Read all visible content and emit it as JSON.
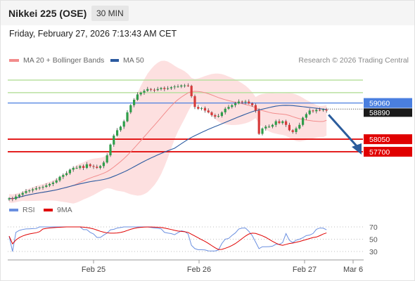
{
  "header": {
    "title": "Nikkei 225 (OSE)",
    "timeframe": "30 MIN"
  },
  "datetime": "Friday, February 27, 2026 7:13:43 AM CET",
  "legend": {
    "ma20_bb": "MA 20 + Bollinger Bands",
    "ma50": "MA 50"
  },
  "credit": "Research © 2026 Trading Central",
  "rsi_legend": {
    "rsi": "RSI",
    "ma9": "9MA"
  },
  "colors": {
    "up": "#2e9e4a",
    "down": "#d63a3a",
    "band": "#fde0e0",
    "ma20": "#f28c8c",
    "ma50": "#2b5aa0",
    "resistance": "#b9e0a0",
    "pivot": "#4a7fe0",
    "support": "#e00000",
    "arrow": "#2b5c9c",
    "rsi": "#6a8fe0",
    "rsi_ma": "#e00000"
  },
  "chart_data": {
    "type": "candlestick",
    "x_ticks": [
      "Feb 25",
      "Feb 26",
      "Feb 27",
      "Mar 6"
    ],
    "y_range": [
      56100,
      59900
    ],
    "close_series": [
      56400,
      56380,
      56450,
      56500,
      56550,
      56600,
      56620,
      56650,
      56680,
      56700,
      56720,
      56760,
      56800,
      56840,
      56900,
      57000,
      57050,
      57100,
      57200,
      57250,
      57250,
      57300,
      57250,
      57350,
      57300,
      57280,
      57250,
      57300,
      57400,
      57600,
      57900,
      58150,
      58300,
      58400,
      58550,
      58800,
      59000,
      59150,
      59300,
      59350,
      59400,
      59450,
      59430,
      59420,
      59450,
      59480,
      59450,
      59470,
      59500,
      59520,
      59520,
      59550,
      59550,
      59540,
      59250,
      58950,
      58900,
      58920,
      58850,
      58800,
      58720,
      58680,
      58700,
      58800,
      58900,
      58950,
      59000,
      59050,
      59100,
      59080,
      59100,
      59050,
      59000,
      58850,
      58200,
      58350,
      58400,
      58400,
      58450,
      58550,
      58500,
      58550,
      58450,
      58300,
      58250,
      58350,
      58450,
      58650,
      58750,
      58850,
      58830,
      58870,
      58860,
      58880,
      58850
    ],
    "levels": {
      "resistance": [
        59700,
        59350
      ],
      "pivot": 59060,
      "current_price": "58890",
      "support": [
        58050,
        57700
      ]
    },
    "rsi": {
      "ticks": [
        "70",
        "50",
        "30"
      ],
      "range": [
        10,
        90
      ]
    }
  }
}
